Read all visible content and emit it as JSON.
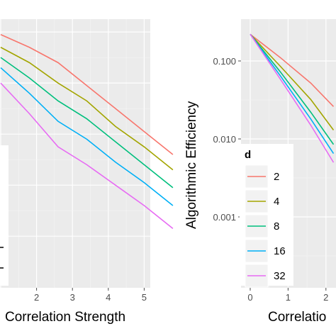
{
  "chart_data": [
    {
      "type": "line",
      "xlabel": "Correlation Strength",
      "ylabel": "",
      "x_ticks": [
        "2",
        "3",
        "4",
        "5"
      ],
      "xlim": [
        0,
        5
      ],
      "ylim": [
        0,
        1
      ],
      "x": [
        0,
        0.8,
        1.6,
        2.4,
        3.2,
        4.0,
        4.8
      ],
      "series": [
        {
          "name": "2",
          "color": "#F8766D",
          "values": [
            0.97,
            0.92,
            0.86,
            0.77,
            0.68,
            0.59,
            0.5
          ]
        },
        {
          "name": "4",
          "color": "#A3A500",
          "values": [
            0.92,
            0.86,
            0.78,
            0.71,
            0.61,
            0.53,
            0.44
          ]
        },
        {
          "name": "8",
          "color": "#00BF7D",
          "values": [
            0.88,
            0.8,
            0.71,
            0.64,
            0.55,
            0.46,
            0.37
          ]
        },
        {
          "name": "16",
          "color": "#00B0F6",
          "values": [
            0.84,
            0.74,
            0.63,
            0.56,
            0.47,
            0.39,
            0.3
          ]
        },
        {
          "name": "32",
          "color": "#E76BF3",
          "values": [
            0.78,
            0.66,
            0.53,
            0.46,
            0.38,
            0.3,
            0.21
          ]
        }
      ],
      "grid": true
    },
    {
      "type": "line",
      "xlabel": "Correlatio",
      "ylabel": "Algorithmic Efficiency",
      "y_scale": "log10",
      "y_ticks": [
        "0.100",
        "0.010",
        "0.001"
      ],
      "x_ticks": [
        "0",
        "1",
        "2"
      ],
      "ylim": [
        0.0002,
        0.3
      ],
      "x": [
        0,
        0.8,
        1.6,
        2.2
      ],
      "series": [
        {
          "name": "2",
          "color": "#F8766D",
          "values": [
            0.22,
            0.11,
            0.052,
            0.026
          ]
        },
        {
          "name": "4",
          "color": "#A3A500",
          "values": [
            0.22,
            0.085,
            0.032,
            0.013
          ]
        },
        {
          "name": "8",
          "color": "#00BF7D",
          "values": [
            0.22,
            0.072,
            0.022,
            0.0085
          ]
        },
        {
          "name": "16",
          "color": "#00B0F6",
          "values": [
            0.22,
            0.064,
            0.018,
            0.0065
          ]
        },
        {
          "name": "32",
          "color": "#E76BF3",
          "values": [
            0.22,
            0.058,
            0.015,
            0.005
          ]
        }
      ],
      "legend": {
        "title": "d",
        "placement": "inside-left",
        "entries": [
          "2",
          "4",
          "8",
          "16",
          "32"
        ]
      },
      "grid": true
    }
  ]
}
